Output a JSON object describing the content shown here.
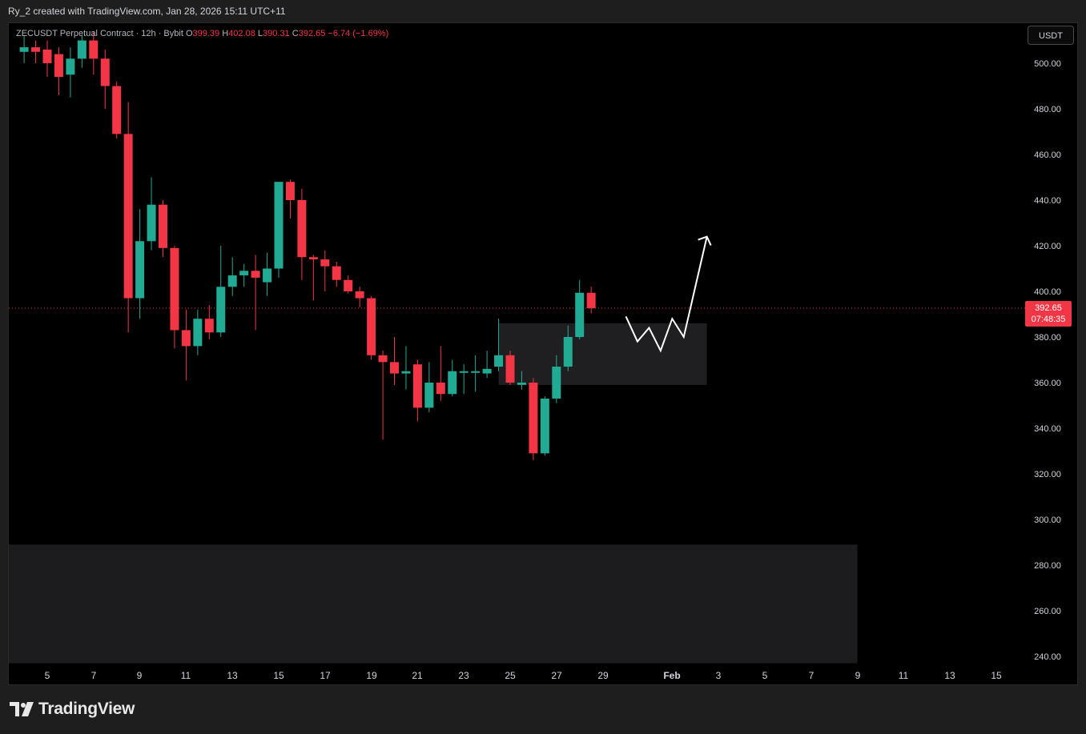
{
  "header": {
    "caption": "Ry_2 created with TradingView.com, Jan 28, 2026 15:11 UTC+11"
  },
  "legend": {
    "symbol": "ZECUSDT Perpetual Contract · 12h · Bybit",
    "open_label": "O",
    "open": "399.39",
    "high_label": "H",
    "high": "402.08",
    "low_label": "L",
    "low": "390.31",
    "close_label": "C",
    "close": "392.65",
    "change": "−6.74 (−1.69%)"
  },
  "currency_button": "USDT",
  "price_badge": {
    "price": "392.65",
    "countdown": "07:48:35"
  },
  "brand": {
    "name": "TradingView"
  },
  "colors": {
    "up": "#22ab94",
    "down": "#f23645",
    "background": "#000000",
    "zone": "#1c1c1e",
    "arrow": "#ffffff",
    "axis_text": "#d1d4dc"
  },
  "chart_data": {
    "type": "candlestick",
    "interval": "12h",
    "ylim": [
      232,
      514
    ],
    "y_ticks": [
      "500.00",
      "480.00",
      "460.00",
      "440.00",
      "420.00",
      "400.00",
      "380.00",
      "360.00",
      "340.00",
      "320.00",
      "300.00",
      "280.00",
      "260.00",
      "240.00"
    ],
    "x_ticks": [
      "5",
      "7",
      "9",
      "11",
      "13",
      "15",
      "17",
      "19",
      "21",
      "23",
      "25",
      "27",
      "29",
      "Feb",
      "3",
      "5",
      "7",
      "9",
      "11",
      "13",
      "15"
    ],
    "last_price": 392.65,
    "candles": [
      {
        "date": "Jan 4 00:00",
        "o": 505,
        "h": 512,
        "l": 500,
        "c": 507
      },
      {
        "date": "Jan 4 12:00",
        "o": 507,
        "h": 510,
        "l": 500,
        "c": 505
      },
      {
        "date": "Jan 5 00:00",
        "o": 506,
        "h": 510,
        "l": 494,
        "c": 500
      },
      {
        "date": "Jan 5 12:00",
        "o": 504,
        "h": 507,
        "l": 486,
        "c": 494
      },
      {
        "date": "Jan 6 00:00",
        "o": 495,
        "h": 507,
        "l": 485,
        "c": 502
      },
      {
        "date": "Jan 6 12:00",
        "o": 502,
        "h": 512,
        "l": 498,
        "c": 510
      },
      {
        "date": "Jan 7 00:00",
        "o": 510,
        "h": 514,
        "l": 495,
        "c": 502
      },
      {
        "date": "Jan 7 12:00",
        "o": 502,
        "h": 506,
        "l": 480,
        "c": 490
      },
      {
        "date": "Jan 8 00:00",
        "o": 490,
        "h": 492,
        "l": 467,
        "c": 469
      },
      {
        "date": "Jan 8 12:00",
        "o": 469,
        "h": 483,
        "l": 382,
        "c": 397
      },
      {
        "date": "Jan 9 00:00",
        "o": 397,
        "h": 436,
        "l": 388,
        "c": 422
      },
      {
        "date": "Jan 9 12:00",
        "o": 422,
        "h": 450,
        "l": 418,
        "c": 438
      },
      {
        "date": "Jan 10 00:00",
        "o": 438,
        "h": 440,
        "l": 415,
        "c": 419
      },
      {
        "date": "Jan 10 12:00",
        "o": 419,
        "h": 420,
        "l": 375,
        "c": 383
      },
      {
        "date": "Jan 11 00:00",
        "o": 383,
        "h": 392,
        "l": 361,
        "c": 376
      },
      {
        "date": "Jan 11 12:00",
        "o": 376,
        "h": 392,
        "l": 372,
        "c": 388
      },
      {
        "date": "Jan 12 00:00",
        "o": 388,
        "h": 394,
        "l": 379,
        "c": 382
      },
      {
        "date": "Jan 12 12:00",
        "o": 382,
        "h": 420,
        "l": 380,
        "c": 402
      },
      {
        "date": "Jan 13 00:00",
        "o": 402,
        "h": 415,
        "l": 398,
        "c": 407
      },
      {
        "date": "Jan 13 12:00",
        "o": 407,
        "h": 412,
        "l": 402,
        "c": 409
      },
      {
        "date": "Jan 14 00:00",
        "o": 409,
        "h": 416,
        "l": 383,
        "c": 406
      },
      {
        "date": "Jan 14 12:00",
        "o": 404,
        "h": 417,
        "l": 398,
        "c": 410
      },
      {
        "date": "Jan 15 00:00",
        "o": 410,
        "h": 448,
        "l": 406,
        "c": 448
      },
      {
        "date": "Jan 15 12:00",
        "o": 448,
        "h": 449,
        "l": 432,
        "c": 440
      },
      {
        "date": "Jan 16 00:00",
        "o": 440,
        "h": 445,
        "l": 405,
        "c": 415
      },
      {
        "date": "Jan 16 12:00",
        "o": 415,
        "h": 416,
        "l": 396,
        "c": 414
      },
      {
        "date": "Jan 17 00:00",
        "o": 414,
        "h": 418,
        "l": 400,
        "c": 411
      },
      {
        "date": "Jan 17 12:00",
        "o": 411,
        "h": 413,
        "l": 402,
        "c": 405
      },
      {
        "date": "Jan 18 00:00",
        "o": 405,
        "h": 407,
        "l": 399,
        "c": 400
      },
      {
        "date": "Jan 18 12:00",
        "o": 400,
        "h": 402,
        "l": 393,
        "c": 397
      },
      {
        "date": "Jan 19 00:00",
        "o": 397,
        "h": 398,
        "l": 370,
        "c": 372
      },
      {
        "date": "Jan 19 12:00",
        "o": 372,
        "h": 374,
        "l": 335,
        "c": 369
      },
      {
        "date": "Jan 20 00:00",
        "o": 369,
        "h": 380,
        "l": 359,
        "c": 364
      },
      {
        "date": "Jan 20 12:00",
        "o": 364,
        "h": 376,
        "l": 357,
        "c": 365
      },
      {
        "date": "Jan 21 00:00",
        "o": 368,
        "h": 370,
        "l": 343,
        "c": 349
      },
      {
        "date": "Jan 21 12:00",
        "o": 349,
        "h": 369,
        "l": 347,
        "c": 360
      },
      {
        "date": "Jan 22 00:00",
        "o": 360,
        "h": 376,
        "l": 352,
        "c": 355
      },
      {
        "date": "Jan 22 12:00",
        "o": 355,
        "h": 370,
        "l": 354,
        "c": 365
      },
      {
        "date": "Jan 23 00:00",
        "o": 365,
        "h": 368,
        "l": 355,
        "c": 365
      },
      {
        "date": "Jan 23 12:00",
        "o": 365,
        "h": 372,
        "l": 356,
        "c": 365
      },
      {
        "date": "Jan 24 00:00",
        "o": 364,
        "h": 374,
        "l": 362,
        "c": 366
      },
      {
        "date": "Jan 24 12:00",
        "o": 367,
        "h": 388,
        "l": 365,
        "c": 372
      },
      {
        "date": "Jan 25 00:00",
        "o": 372,
        "h": 374,
        "l": 359,
        "c": 360
      },
      {
        "date": "Jan 25 12:00",
        "o": 359,
        "h": 365,
        "l": 357,
        "c": 360
      },
      {
        "date": "Jan 26 00:00",
        "o": 360,
        "h": 362,
        "l": 326,
        "c": 329
      },
      {
        "date": "Jan 26 12:00",
        "o": 329,
        "h": 354,
        "l": 328,
        "c": 353
      },
      {
        "date": "Jan 27 00:00",
        "o": 353,
        "h": 372,
        "l": 351,
        "c": 367
      },
      {
        "date": "Jan 27 12:00",
        "o": 367,
        "h": 385,
        "l": 365,
        "c": 380
      },
      {
        "date": "Jan 28 00:00",
        "o": 380,
        "h": 405,
        "l": 379,
        "c": 399.39
      },
      {
        "date": "Jan 28 12:00",
        "o": 399.39,
        "h": 402.08,
        "l": 390.31,
        "c": 392.65
      }
    ],
    "zones": [
      {
        "from": "Jan 24 12:00",
        "to": "Feb 2 12:00",
        "top": 386,
        "bottom": 359
      },
      {
        "from": "chart start",
        "to": "Feb 9",
        "top": 289,
        "bottom": 237
      }
    ],
    "projection_path": [
      {
        "date": "Jan 30 00:00",
        "price": 389
      },
      {
        "date": "Jan 30 12:00",
        "price": 378
      },
      {
        "date": "Jan 31 00:00",
        "price": 384
      },
      {
        "date": "Jan 31 12:00",
        "price": 374
      },
      {
        "date": "Feb 1 00:00",
        "price": 388
      },
      {
        "date": "Feb 1 12:00",
        "price": 380
      },
      {
        "date": "Feb 2 12:00",
        "price": 424
      }
    ]
  }
}
